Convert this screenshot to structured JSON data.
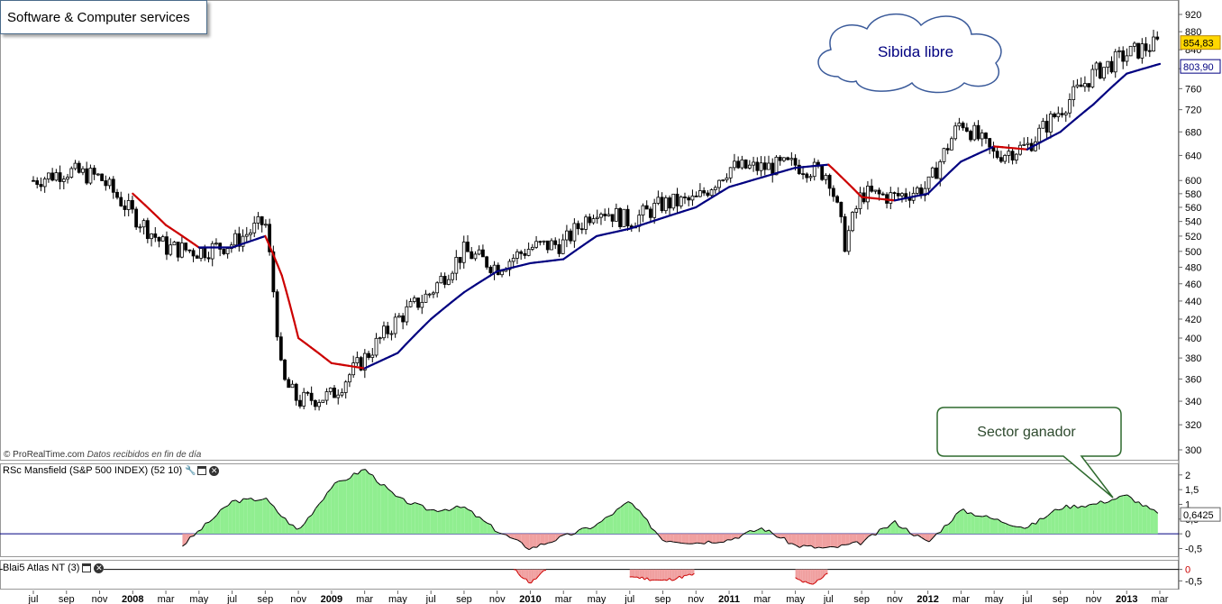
{
  "title": "Software & Computer services",
  "credit": {
    "site": "© ProRealTime.com",
    "note": "Datos recibidos en fin de día"
  },
  "annotations": {
    "cloud_text": "Sibida libre",
    "callout_text": "Sector ganador"
  },
  "panels": {
    "rs": {
      "label": "RSc Mansfield (S&P 500 INDEX) (52 10)"
    },
    "atlas": {
      "label": "Blai5 Atlas NT (3)"
    }
  },
  "icons": {
    "wrench": "wrench-icon",
    "window": "window-icon",
    "close": "close-icon"
  },
  "colors": {
    "background": "#ffffff",
    "candle": "#000000",
    "ma_rising": "#000080",
    "ma_falling": "#cc0000",
    "rs_positive_fill": "#90ee90",
    "rs_negative_fill": "#f0a0a0",
    "zero_line": "#000080",
    "price_tag": "#ffd700"
  },
  "chart_data": [
    {
      "type": "candlestick",
      "name_series": "price",
      "ylim": [
        290,
        935
      ],
      "yticks": [
        300,
        320,
        340,
        360,
        380,
        400,
        420,
        440,
        460,
        480,
        500,
        520,
        540,
        560,
        580,
        600,
        640,
        680,
        720,
        760,
        800,
        840,
        880,
        920
      ],
      "last_price": "854,83",
      "ma_value": "803,90",
      "x_axis_labels": [
        "jul",
        "sep",
        "nov",
        "2008",
        "mar",
        "may",
        "jul",
        "sep",
        "nov",
        "2009",
        "mar",
        "may",
        "jul",
        "sep",
        "nov",
        "2010",
        "mar",
        "may",
        "jul",
        "sep",
        "nov",
        "2011",
        "mar",
        "may",
        "jul",
        "sep",
        "nov",
        "2012",
        "mar",
        "may",
        "jul",
        "sep",
        "nov",
        "2013",
        "mar"
      ],
      "x": [
        "2007-07",
        "2007-09",
        "2007-11",
        "2008-01",
        "2008-03",
        "2008-05",
        "2008-07",
        "2008-09",
        "2008-10",
        "2008-11",
        "2009-01",
        "2009-03",
        "2009-05",
        "2009-07",
        "2009-09",
        "2009-11",
        "2010-01",
        "2010-03",
        "2010-05",
        "2010-07",
        "2010-09",
        "2010-11",
        "2011-01",
        "2011-03",
        "2011-05",
        "2011-07",
        "2011-08",
        "2011-09",
        "2011-11",
        "2012-01",
        "2012-03",
        "2012-05",
        "2012-07",
        "2012-09",
        "2012-11",
        "2013-01",
        "2013-03"
      ],
      "close": [
        600,
        615,
        605,
        550,
        505,
        500,
        510,
        540,
        360,
        340,
        345,
        380,
        420,
        450,
        500,
        480,
        505,
        510,
        560,
        540,
        565,
        570,
        620,
        620,
        625,
        610,
        510,
        580,
        575,
        590,
        700,
        640,
        655,
        720,
        790,
        830,
        855
      ],
      "ma": [
        null,
        null,
        null,
        580,
        535,
        505,
        505,
        520,
        470,
        400,
        375,
        370,
        385,
        420,
        450,
        475,
        485,
        490,
        520,
        530,
        545,
        560,
        590,
        605,
        620,
        625,
        600,
        575,
        570,
        580,
        630,
        655,
        650,
        680,
        730,
        790,
        810
      ]
    },
    {
      "type": "area",
      "name_series": "rs_mansfield",
      "ylim": [
        -0.7,
        2.3
      ],
      "yticks": [
        "2",
        "1,5",
        "1",
        "0,5",
        "0",
        "-0,5"
      ],
      "last_value": "0,6425",
      "x": [
        "2007-07",
        "2008-01",
        "2008-04",
        "2008-05",
        "2008-07",
        "2008-09",
        "2008-10",
        "2008-11",
        "2009-01",
        "2009-03",
        "2009-05",
        "2009-07",
        "2009-09",
        "2009-11",
        "2010-01",
        "2010-03",
        "2010-05",
        "2010-07",
        "2010-09",
        "2010-11",
        "2011-01",
        "2011-03",
        "2011-05",
        "2011-07",
        "2011-09",
        "2011-11",
        "2012-01",
        "2012-03",
        "2012-05",
        "2012-07",
        "2012-09",
        "2012-11",
        "2013-01",
        "2013-03"
      ],
      "values": [
        null,
        null,
        -0.4,
        0.1,
        1.1,
        1.2,
        0.6,
        0.1,
        1.6,
        2.2,
        1.2,
        0.8,
        0.9,
        0.1,
        -0.5,
        -0.1,
        0.3,
        1.1,
        -0.2,
        -0.3,
        -0.2,
        0.2,
        -0.4,
        -0.5,
        -0.3,
        0.4,
        -0.3,
        0.8,
        0.5,
        0.2,
        0.9,
        1.0,
        1.3,
        0.64
      ]
    },
    {
      "type": "area",
      "name_series": "atlas",
      "ylim": [
        -0.8,
        0.3
      ],
      "yticks": [
        "0",
        "-0,5"
      ],
      "x": [
        "2009-12",
        "2010-01",
        "2010-02",
        "2010-07",
        "2010-09",
        "2010-11",
        "2011-05",
        "2011-06",
        "2011-07"
      ],
      "values": [
        0,
        -0.6,
        0,
        -0.3,
        -0.5,
        -0.2,
        -0.4,
        -0.7,
        -0.1
      ]
    }
  ]
}
